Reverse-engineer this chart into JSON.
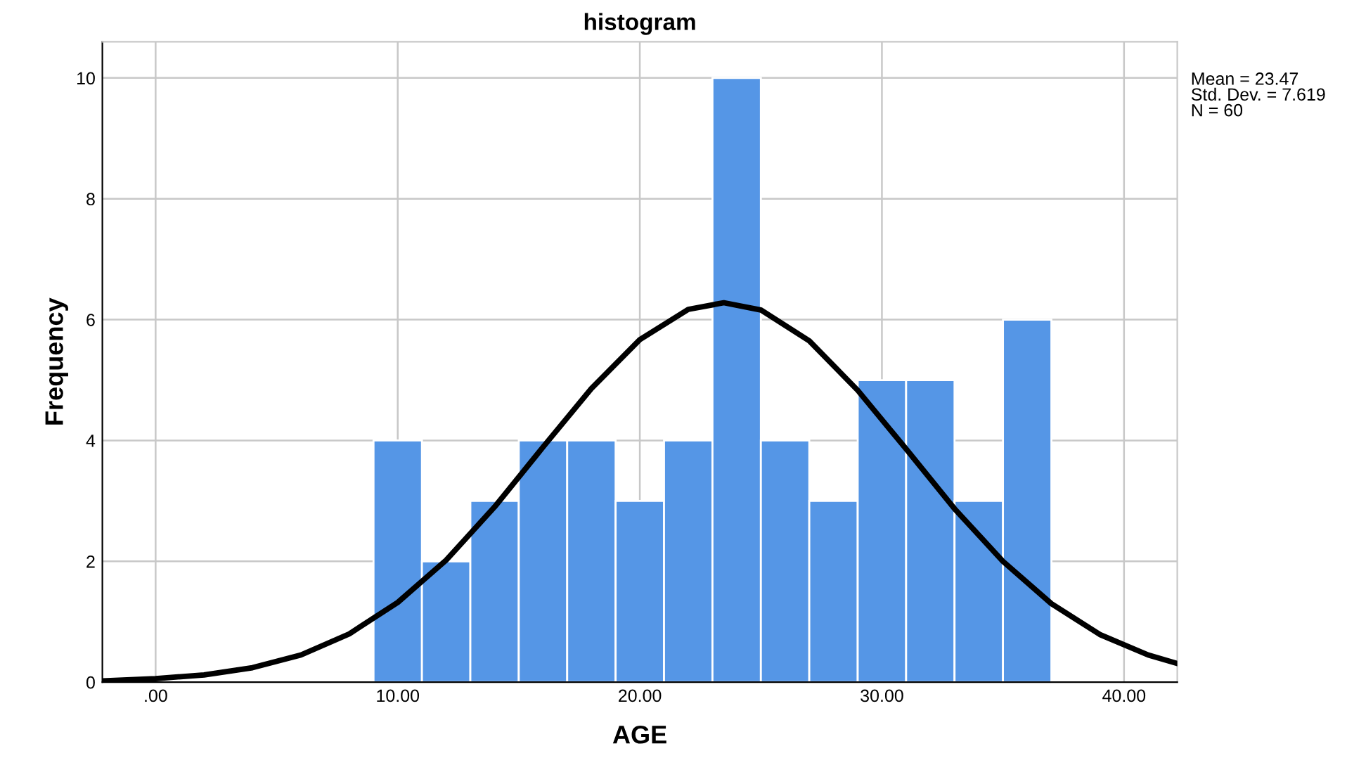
{
  "chart_data": {
    "type": "histogram",
    "title": "histogram",
    "xlabel": "AGE",
    "ylabel": "Frequency",
    "bins": [
      9,
      11,
      13,
      15,
      17,
      19,
      21,
      23,
      25,
      27,
      29,
      31,
      33,
      35,
      37
    ],
    "values": [
      4,
      2,
      3,
      4,
      4,
      3,
      4,
      10,
      4,
      3,
      5,
      5,
      3,
      6
    ],
    "color": "#5596e6",
    "series": [
      {
        "type": "line",
        "color": "#000000",
        "x": [
          -2.2,
          0,
          2,
          4,
          6,
          8,
          10,
          12,
          14,
          16,
          18,
          20,
          22,
          23.47,
          25,
          27,
          29,
          31,
          33,
          35,
          37,
          39,
          41,
          42.2
        ],
        "values": [
          0.02,
          0.06,
          0.12,
          0.24,
          0.45,
          0.8,
          1.32,
          2.02,
          2.9,
          3.89,
          4.86,
          5.67,
          6.17,
          6.28,
          6.16,
          5.65,
          4.83,
          3.86,
          2.87,
          2.0,
          1.3,
          0.79,
          0.45,
          0.31
        ]
      }
    ],
    "xlim": [
      -2.2,
      42.2
    ],
    "xticks": [
      {
        "value": 0,
        "label": ".00"
      },
      {
        "value": 10,
        "label": "10.00"
      },
      {
        "value": 20,
        "label": "20.00"
      },
      {
        "value": 30,
        "label": "30.00"
      },
      {
        "value": 40,
        "label": "40.00"
      }
    ],
    "ylim": [
      0,
      10.6
    ],
    "yticks": [
      0,
      2,
      4,
      6,
      8,
      10
    ],
    "grid": true,
    "legend": false,
    "annotations": [
      "Mean = 23.47\nStd. Dev. = 7.619\nN = 60"
    ]
  }
}
